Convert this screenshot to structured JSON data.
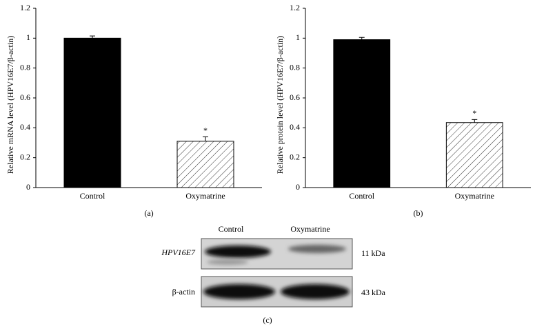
{
  "chart_data": [
    {
      "type": "bar",
      "caption": "(a)",
      "y_label": "Relative mRNA level (HPV16E7/β-actin)",
      "categories": [
        "Control",
        "Oxymatrine"
      ],
      "values": [
        1.0,
        0.31
      ],
      "errors": [
        0.015,
        0.03
      ],
      "colors": [
        "#000000",
        "#ffffff"
      ],
      "hatch": [
        false,
        true
      ],
      "annotations": [
        {
          "x": "Oxymatrine",
          "text": "*"
        }
      ],
      "ylim": [
        0,
        1.2
      ],
      "yticks": [
        0,
        0.2,
        0.4,
        0.6,
        0.8,
        1,
        1.2
      ],
      "grid": false
    },
    {
      "type": "bar",
      "caption": "(b)",
      "y_label": "Relative protein level (HPV16E7/β-actin)",
      "categories": [
        "Control",
        "Oxymatrine"
      ],
      "values": [
        0.99,
        0.435
      ],
      "errors": [
        0.015,
        0.02
      ],
      "colors": [
        "#000000",
        "#ffffff"
      ],
      "hatch": [
        false,
        true
      ],
      "annotations": [
        {
          "x": "Oxymatrine",
          "text": "*"
        }
      ],
      "ylim": [
        0,
        1.2
      ],
      "yticks": [
        0,
        0.2,
        0.4,
        0.6,
        0.8,
        1,
        1.2
      ],
      "grid": false
    }
  ],
  "blot": {
    "lanes": [
      "Control",
      "Oxymatrine"
    ],
    "rows": [
      {
        "label": "HPV16E7",
        "size": "11 kDa"
      },
      {
        "label": "β-actin",
        "size": "43 kDa"
      }
    ],
    "caption": "(c)"
  }
}
